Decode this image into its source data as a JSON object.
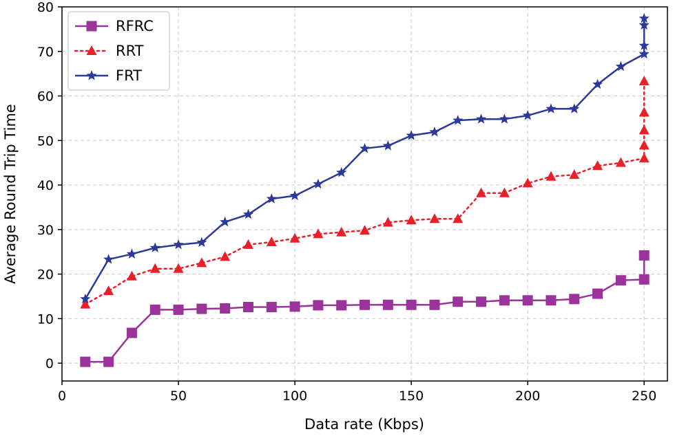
{
  "chart_data": {
    "type": "line",
    "title": "",
    "xlabel": "Data rate (Kbps)",
    "ylabel": "Average Round Trip Time",
    "xlim": [
      0,
      260
    ],
    "ylim": [
      -4,
      80
    ],
    "xticks": [
      0,
      50,
      100,
      150,
      200,
      250
    ],
    "yticks": [
      0,
      10,
      20,
      30,
      40,
      50,
      60,
      70,
      80
    ],
    "grid": true,
    "legend_position": "top-left",
    "series": [
      {
        "name": "RFRC",
        "color": "#9a339a",
        "line_style": "solid",
        "marker": "square",
        "x": [
          10,
          20,
          30,
          40,
          50,
          60,
          70,
          80,
          90,
          100,
          110,
          120,
          130,
          140,
          150,
          160,
          170,
          180,
          190,
          200,
          210,
          220,
          230,
          240,
          250,
          250
        ],
        "y": [
          0.3,
          0.3,
          6.8,
          12.0,
          12.0,
          12.2,
          12.3,
          12.6,
          12.6,
          12.7,
          13.0,
          13.0,
          13.1,
          13.1,
          13.1,
          13.1,
          13.8,
          13.8,
          14.1,
          14.1,
          14.1,
          14.4,
          15.6,
          18.6,
          18.8,
          24.2
        ]
      },
      {
        "name": "RRT",
        "color": "#e8202a",
        "line_style": "dotted",
        "marker": "triangle",
        "x": [
          10,
          20,
          30,
          40,
          50,
          60,
          70,
          80,
          90,
          100,
          110,
          120,
          130,
          140,
          150,
          160,
          170,
          180,
          190,
          200,
          210,
          220,
          230,
          240,
          250,
          250,
          250,
          250,
          250
        ],
        "y": [
          13.2,
          16.2,
          19.5,
          21.2,
          21.2,
          22.5,
          23.9,
          26.6,
          27.2,
          28.0,
          29.0,
          29.4,
          29.8,
          31.6,
          32.1,
          32.4,
          32.4,
          38.2,
          38.2,
          40.4,
          41.9,
          42.3,
          44.3,
          45.0,
          46.0,
          48.9,
          52.3,
          56.3,
          63.3
        ]
      },
      {
        "name": "FRT",
        "color": "#2b3a98",
        "line_style": "solid",
        "marker": "star",
        "x": [
          10,
          20,
          30,
          40,
          50,
          60,
          70,
          80,
          90,
          100,
          110,
          120,
          130,
          140,
          150,
          160,
          170,
          180,
          190,
          200,
          210,
          220,
          230,
          240,
          250,
          250,
          250,
          250
        ],
        "y": [
          14.4,
          23.3,
          24.5,
          25.9,
          26.6,
          27.1,
          31.7,
          33.4,
          36.9,
          37.6,
          40.2,
          42.8,
          48.2,
          48.8,
          51.1,
          51.9,
          54.5,
          54.8,
          54.8,
          55.6,
          57.1,
          57.1,
          62.6,
          66.6,
          69.4,
          71.3,
          75.9,
          77.4
        ]
      }
    ]
  }
}
